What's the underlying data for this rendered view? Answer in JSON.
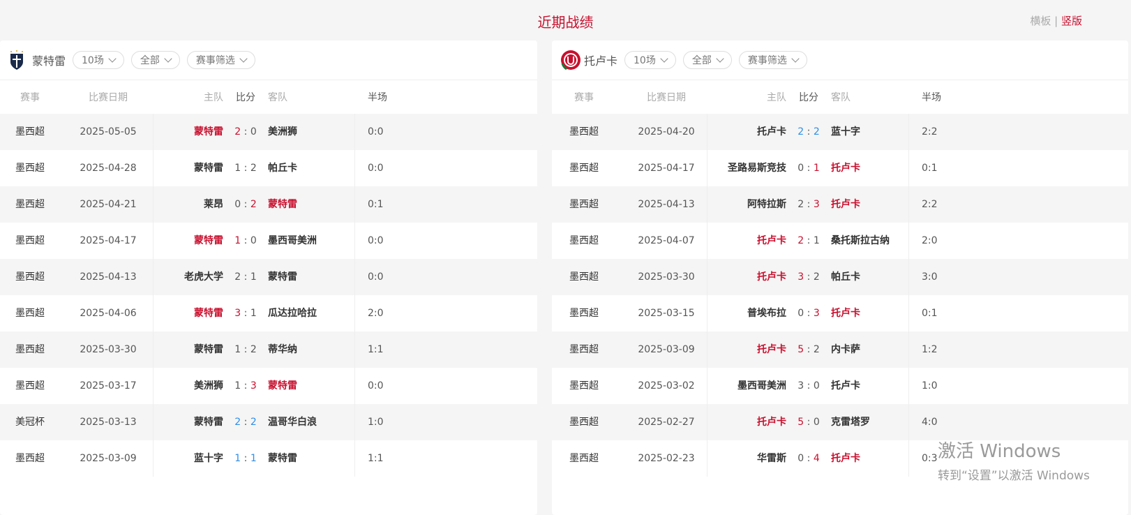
{
  "page": {
    "title": "近期战绩",
    "view_horizontal": "横板",
    "separator": "|",
    "view_vertical": "竖版"
  },
  "colors": {
    "accent": "#c8102e",
    "draw": "#2f8ee8"
  },
  "headers": {
    "competition": "赛事",
    "date": "比赛日期",
    "home": "主队",
    "score": "比分",
    "away": "客队",
    "half": "半场"
  },
  "panels": [
    {
      "team": "蒙特雷",
      "logo_icon": "monterrey-crest-icon",
      "filters": [
        "10场",
        "全部",
        "赛事筛选"
      ],
      "matches": [
        [
          "墨西超",
          "2025-05-05",
          "蒙特雷",
          2,
          0,
          "美洲狮",
          "0:0"
        ],
        [
          "墨西超",
          "2025-04-28",
          "蒙特雷",
          1,
          2,
          "帕丘卡",
          "0:0"
        ],
        [
          "墨西超",
          "2025-04-21",
          "莱昂",
          0,
          2,
          "蒙特雷",
          "0:1"
        ],
        [
          "墨西超",
          "2025-04-17",
          "蒙特雷",
          1,
          0,
          "墨西哥美洲",
          "0:0"
        ],
        [
          "墨西超",
          "2025-04-13",
          "老虎大学",
          2,
          1,
          "蒙特雷",
          "0:0"
        ],
        [
          "墨西超",
          "2025-04-06",
          "蒙特雷",
          3,
          1,
          "瓜达拉哈拉",
          "2:0"
        ],
        [
          "墨西超",
          "2025-03-30",
          "蒙特雷",
          1,
          2,
          "蒂华纳",
          "1:1"
        ],
        [
          "墨西超",
          "2025-03-17",
          "美洲狮",
          1,
          3,
          "蒙特雷",
          "0:0"
        ],
        [
          "美冠杯",
          "2025-03-13",
          "蒙特雷",
          2,
          2,
          "温哥华白浪",
          "1:0"
        ],
        [
          "墨西超",
          "2025-03-09",
          "蓝十字",
          1,
          1,
          "蒙特雷",
          "1:1"
        ]
      ]
    },
    {
      "team": "托卢卡",
      "logo_icon": "toluca-crest-icon",
      "filters": [
        "10场",
        "全部",
        "赛事筛选"
      ],
      "matches": [
        [
          "墨西超",
          "2025-04-20",
          "托卢卡",
          2,
          2,
          "蓝十字",
          "2:2"
        ],
        [
          "墨西超",
          "2025-04-17",
          "圣路易斯竞技",
          0,
          1,
          "托卢卡",
          "0:1"
        ],
        [
          "墨西超",
          "2025-04-13",
          "阿特拉斯",
          2,
          3,
          "托卢卡",
          "2:2"
        ],
        [
          "墨西超",
          "2025-04-07",
          "托卢卡",
          2,
          1,
          "桑托斯拉古纳",
          "2:0"
        ],
        [
          "墨西超",
          "2025-03-30",
          "托卢卡",
          3,
          2,
          "帕丘卡",
          "3:0"
        ],
        [
          "墨西超",
          "2025-03-15",
          "普埃布拉",
          0,
          3,
          "托卢卡",
          "0:1"
        ],
        [
          "墨西超",
          "2025-03-09",
          "托卢卡",
          5,
          2,
          "内卡萨",
          "1:2"
        ],
        [
          "墨西超",
          "2025-03-02",
          "墨西哥美洲",
          3,
          0,
          "托卢卡",
          "1:0"
        ],
        [
          "墨西超",
          "2025-02-27",
          "托卢卡",
          5,
          0,
          "克雷塔罗",
          "4:0"
        ],
        [
          "墨西超",
          "2025-02-23",
          "华雷斯",
          0,
          4,
          "托卢卡",
          "0:3"
        ]
      ]
    }
  ],
  "watermark": {
    "line1": "激活 Windows",
    "line2": "转到“设置”以激活 Windows"
  }
}
